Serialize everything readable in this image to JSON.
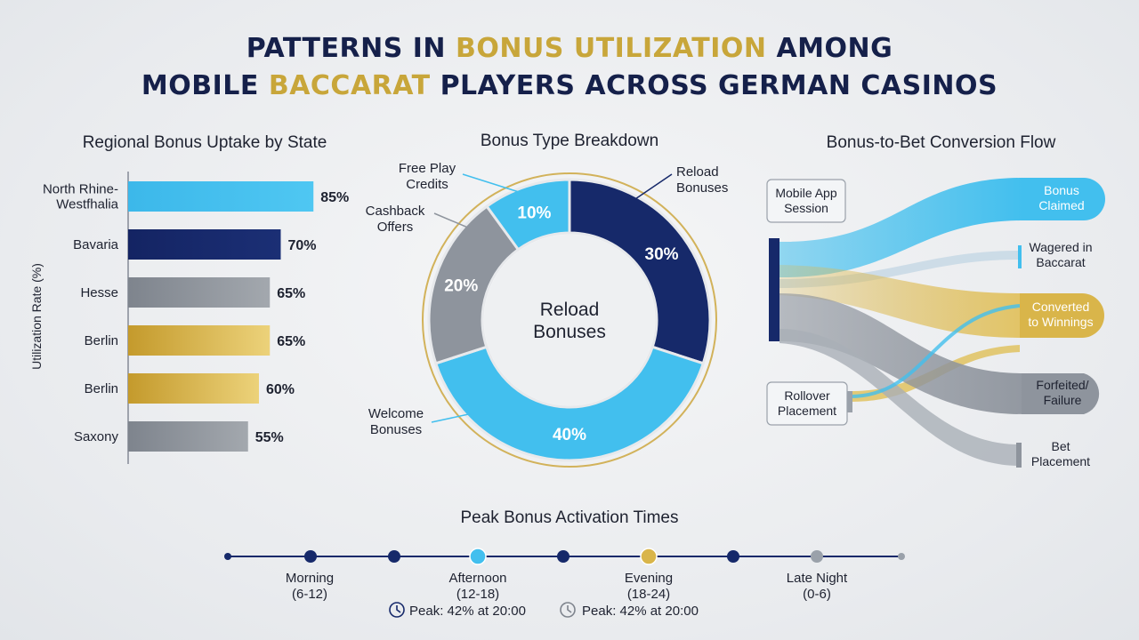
{
  "title": {
    "line1": [
      {
        "text": "PATTERNS IN ",
        "gold": false
      },
      {
        "text": "BONUS UTILIZATION",
        "gold": true
      },
      {
        "text": " AMONG",
        "gold": false
      }
    ],
    "line2": [
      {
        "text": "MOBILE ",
        "gold": false
      },
      {
        "text": "BACCARAT",
        "gold": true
      },
      {
        "text": " PLAYERS ACROSS GERMAN CASINOS",
        "gold": false
      }
    ]
  },
  "colors": {
    "navy": "#16296a",
    "blue": "#42bfee",
    "gray": "#8e949d",
    "gold": "#d9b54a",
    "dark": "#15204a"
  },
  "chart_data": [
    {
      "type": "bar",
      "orientation": "horizontal",
      "title": "Regional Bonus Uptake by State",
      "ylabel": "Utilization Rate (%)",
      "xlim": [
        0,
        100
      ],
      "categories": [
        "North Rhine-Westfhalia",
        "Bavaria",
        "Hesse",
        "Berlin",
        "Berlin",
        "Saxony"
      ],
      "category_lines": [
        [
          "North Rhine-",
          "Westfhalia"
        ],
        [
          "Bavaria"
        ],
        [
          "Hesse"
        ],
        [
          "Berlin"
        ],
        [
          "Berlin"
        ],
        [
          "Saxony"
        ]
      ],
      "values": [
        85,
        70,
        65,
        65,
        60,
        55
      ],
      "value_labels": [
        "85%",
        "70%",
        "65%",
        "65%",
        "60%",
        "55%"
      ],
      "bar_colors": [
        "blue",
        "navy",
        "gray",
        "gold",
        "gold",
        "gray"
      ]
    },
    {
      "type": "pie",
      "variant": "donut",
      "title": "Bonus Type Breakdown",
      "center_label": [
        "Reload",
        "Bonuses"
      ],
      "slices": [
        {
          "label": "Reload Bonuses",
          "label_lines": [
            "Reload",
            "Bonuses"
          ],
          "value": 30,
          "value_label": "30%",
          "color": "navy"
        },
        {
          "label": "Welcome Bonuses",
          "label_lines": [
            "Welcome",
            "Bonuses"
          ],
          "value": 40,
          "value_label": "40%",
          "color": "blue"
        },
        {
          "label": "Cashback Offers",
          "label_lines": [
            "Cashback",
            "Offers"
          ],
          "value": 20,
          "value_label": "20%",
          "color": "gray"
        },
        {
          "label": "Free Play Credits",
          "label_lines": [
            "Free Play",
            "Credits"
          ],
          "value": 10,
          "value_label": "10%",
          "color": "blue"
        }
      ]
    },
    {
      "type": "sankey",
      "title": "Bonus-to-Bet Conversion Flow",
      "sources": [
        {
          "label_lines": [
            "Mobile App",
            "Session"
          ]
        },
        {
          "label_lines": [
            "Rollover",
            "Placement"
          ]
        }
      ],
      "targets": [
        {
          "label_lines": [
            "Bonus",
            "Claimed"
          ],
          "color": "blue"
        },
        {
          "label_lines": [
            "Wagered in",
            "Baccarat"
          ],
          "color": "blue"
        },
        {
          "label_lines": [
            "Converted",
            "to Winnings"
          ],
          "color": "gold"
        },
        {
          "label_lines": [
            "Forfeited/",
            "Failure"
          ],
          "color": "gray"
        },
        {
          "label_lines": [
            "Bet",
            "Placement"
          ],
          "color": "gray"
        }
      ]
    },
    {
      "type": "timeline",
      "title": "Peak Bonus Activation Times",
      "periods": [
        {
          "label": "Morning",
          "range": "(6-12)",
          "highlight": null
        },
        {
          "label": "Afternoon",
          "range": "(12-18)",
          "highlight": "blue"
        },
        {
          "label": "Evening",
          "range": "(18-24)",
          "highlight": "gold"
        },
        {
          "label": "Late Night",
          "range": "(0-6)",
          "highlight": null
        }
      ],
      "peak_notes": [
        "Peak: 42% at 20:00",
        "Peak: 42% at 20:00"
      ]
    }
  ]
}
